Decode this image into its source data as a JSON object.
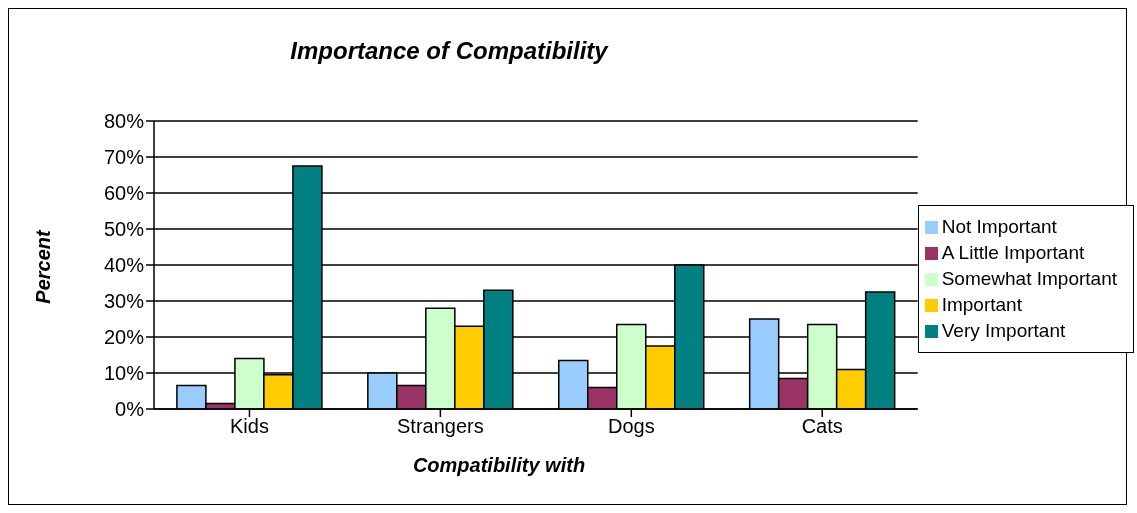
{
  "chart_data": {
    "type": "bar",
    "title": "Importance of Compatibility",
    "xlabel": "Compatibility with",
    "ylabel": "Percent",
    "categories": [
      "Kids",
      "Strangers",
      "Dogs",
      "Cats"
    ],
    "series": [
      {
        "name": "Not Important",
        "color": "#99ccff",
        "values": [
          6.5,
          10,
          13.5,
          25
        ]
      },
      {
        "name": "A Little Important",
        "color": "#993366",
        "values": [
          1.5,
          6.5,
          6,
          8.5
        ]
      },
      {
        "name": "Somewhat Important",
        "color": "#ccffcc",
        "values": [
          14,
          28,
          23.5,
          23.5
        ]
      },
      {
        "name": "Important",
        "color": "#ffcc00",
        "values": [
          9.5,
          23,
          17.5,
          11
        ]
      },
      {
        "name": "Very Important",
        "color": "#008080",
        "values": [
          67.5,
          33,
          40,
          32.5
        ]
      }
    ],
    "ylim": [
      0,
      80
    ],
    "yticks": [
      {
        "value": 0,
        "label": "0%"
      },
      {
        "value": 10,
        "label": "10%"
      },
      {
        "value": 20,
        "label": "20%"
      },
      {
        "value": 30,
        "label": "30%"
      },
      {
        "value": 40,
        "label": "40%"
      },
      {
        "value": 50,
        "label": "50%"
      },
      {
        "value": 60,
        "label": "60%"
      },
      {
        "value": 70,
        "label": "70%"
      },
      {
        "value": 80,
        "label": "80%"
      }
    ],
    "grid": "y",
    "legend": "right"
  }
}
